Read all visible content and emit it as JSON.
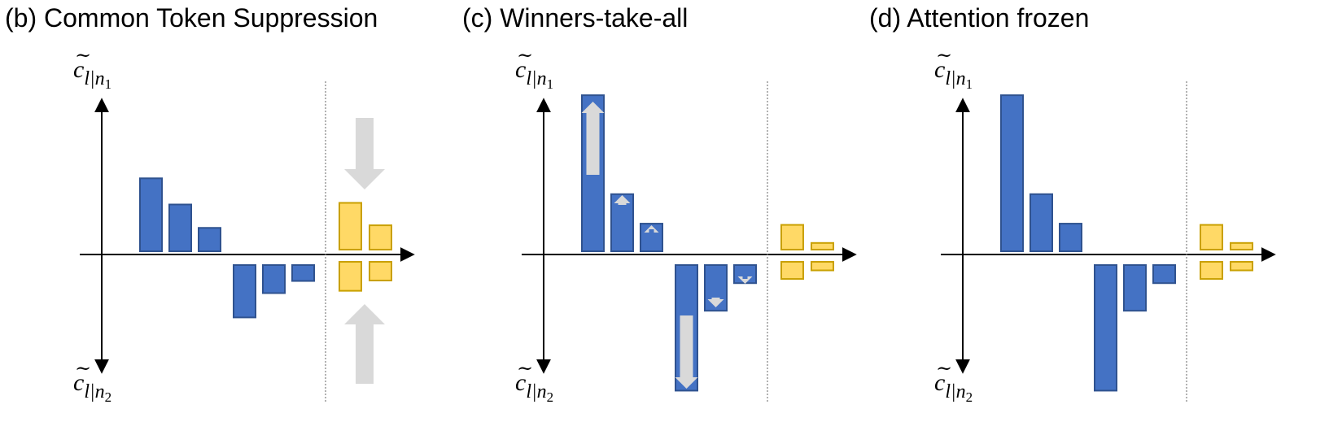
{
  "colors": {
    "blue_fill": "#4472C4",
    "blue_stroke": "#2F528F",
    "yellow_fill": "#FFD966",
    "yellow_stroke": "#C9A000",
    "arrow_gray": "#D9D9D9",
    "axis": "#000000",
    "divider": "#7F7F7F"
  },
  "panels": [
    {
      "title": "(b) Common Token Suppression",
      "y_top_label": {
        "base": "c",
        "sub": "l|n",
        "subsub": "1"
      },
      "y_bottom_label": {
        "base": "c",
        "sub": "l|n",
        "subsub": "2"
      },
      "blue_up": [
        3.9,
        2.5,
        1.25
      ],
      "blue_down": [
        2.8,
        1.5,
        0.85
      ],
      "yellow_up": [
        2.5,
        1.3
      ],
      "yellow_down": [
        1.55,
        1.0
      ],
      "arrows": "suppress"
    },
    {
      "title": "(c) Winners-take-all",
      "y_top_label": {
        "base": "c",
        "sub": "l|n",
        "subsub": "1"
      },
      "y_bottom_label": {
        "base": "c",
        "sub": "l|n",
        "subsub": "2"
      },
      "blue_up": [
        8.2,
        3.0,
        1.45
      ],
      "blue_down": [
        6.6,
        2.4,
        0.95
      ],
      "yellow_up": [
        1.3,
        0.35
      ],
      "yellow_down": [
        0.9,
        0.45
      ],
      "arrows": "amplify"
    },
    {
      "title": "(d) Attention frozen",
      "y_top_label": {
        "base": "c",
        "sub": "l|n",
        "subsub": "1"
      },
      "y_bottom_label": {
        "base": "c",
        "sub": "l|n",
        "subsub": "2"
      },
      "blue_up": [
        8.2,
        3.0,
        1.45
      ],
      "blue_down": [
        6.6,
        2.4,
        0.95
      ],
      "yellow_up": [
        1.3,
        0.35
      ],
      "yellow_down": [
        0.9,
        0.45
      ],
      "arrows": "none"
    }
  ]
}
